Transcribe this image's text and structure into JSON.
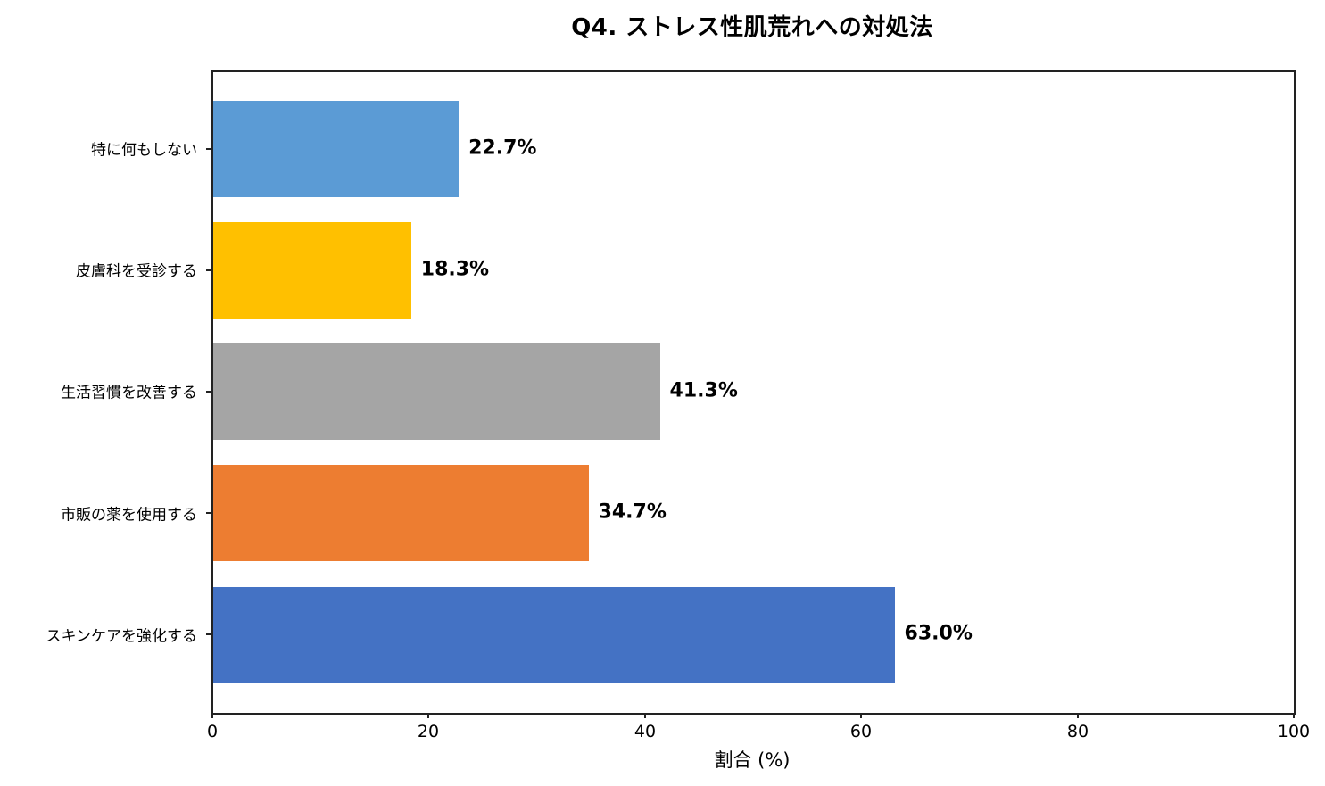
{
  "chart_data": {
    "type": "bar",
    "orientation": "horizontal",
    "title": "Q4. ストレス性肌荒れへの対処法",
    "xlabel": "割合 (%)",
    "ylabel": "",
    "xlim": [
      0,
      100
    ],
    "xticks": [
      "0",
      "20",
      "40",
      "60",
      "80",
      "100"
    ],
    "grid": false,
    "legend": null,
    "categories": [
      "特に何もしない",
      "皮膚科を受診する",
      "生活習慣を改善する",
      "市販の薬を使用する",
      "スキンケアを強化する"
    ],
    "values": [
      22.7,
      18.3,
      41.3,
      34.7,
      63.0
    ],
    "value_labels": [
      "22.7%",
      "18.3%",
      "41.3%",
      "34.7%",
      "63.0%"
    ],
    "colors": [
      "#5B9BD5",
      "#FFC000",
      "#A5A5A5",
      "#ED7D31",
      "#4472C4"
    ]
  }
}
